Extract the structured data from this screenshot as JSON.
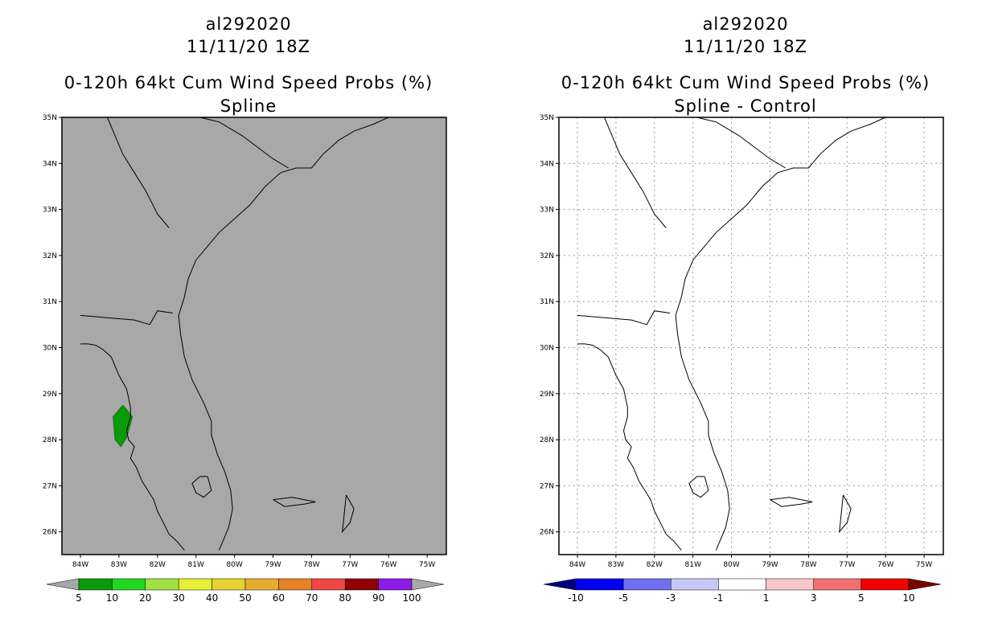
{
  "left_panel": {
    "title_line1": "al292020",
    "title_line2": "11/11/20 18Z",
    "title_line3": "0-120h 64kt Cum Wind Speed Probs (%)",
    "title_line4": "Spline",
    "colorbar": {
      "labels": [
        "5",
        "10",
        "20",
        "30",
        "40",
        "50",
        "60",
        "70",
        "80",
        "90",
        "100"
      ],
      "colors": [
        "#a8a8a8",
        "#0a9a0a",
        "#22d622",
        "#a0e046",
        "#e6f034",
        "#e6d232",
        "#e6ae2e",
        "#e68228",
        "#f04646",
        "#900000",
        "#8c1ce6",
        "#a8a8a8"
      ]
    }
  },
  "right_panel": {
    "title_line1": "al292020",
    "title_line2": "11/11/20 18Z",
    "title_line3": "0-120h 64kt Cum Wind Speed Probs (%)",
    "title_line4": "Spline - Control",
    "colorbar": {
      "labels": [
        "-10",
        "-5",
        "-3",
        "-1",
        "1",
        "3",
        "5",
        "10"
      ],
      "colors": [
        "#00007c",
        "#0000f0",
        "#7070f0",
        "#c8c8f8",
        "#ffffff",
        "#f8c8c8",
        "#f07070",
        "#f00000",
        "#7c0000"
      ]
    }
  },
  "axes": {
    "lat_labels": [
      "35N",
      "34N",
      "33N",
      "32N",
      "31N",
      "30N",
      "29N",
      "28N",
      "27N",
      "26N"
    ],
    "lon_labels": [
      "84W",
      "83W",
      "82W",
      "81W",
      "80W",
      "79W",
      "78W",
      "77W",
      "76W",
      "75W"
    ]
  },
  "map_colors": {
    "left_background": "#a8a8a8",
    "right_background": "#ffffff",
    "prob_fill": "#0a9a0a"
  }
}
